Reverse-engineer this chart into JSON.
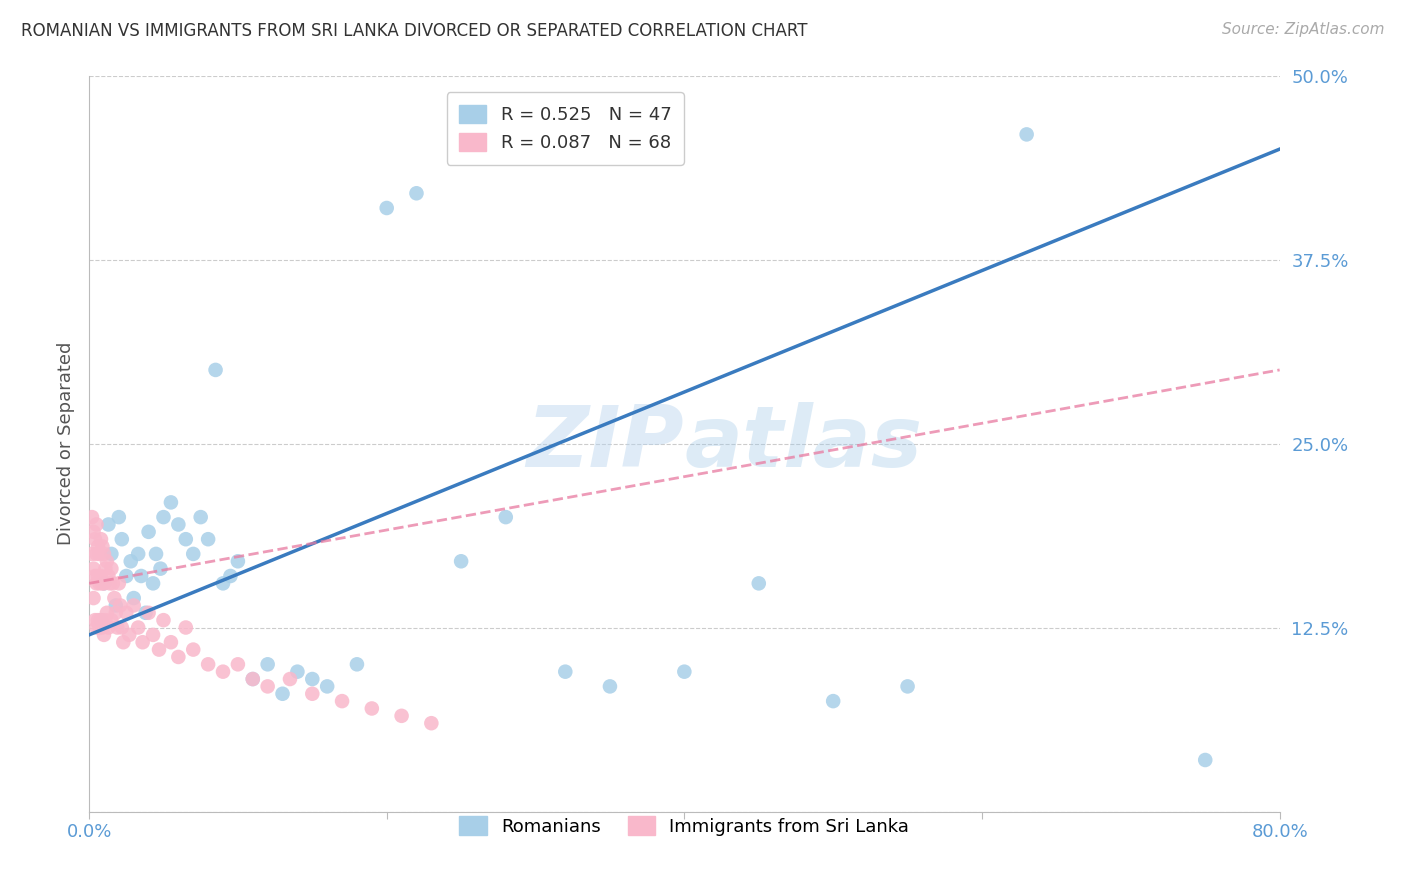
{
  "title": "ROMANIAN VS IMMIGRANTS FROM SRI LANKA DIVORCED OR SEPARATED CORRELATION CHART",
  "source_text": "Source: ZipAtlas.com",
  "ylabel": "Divorced or Separated",
  "xlim": [
    0.0,
    0.8
  ],
  "ylim": [
    0.0,
    0.5
  ],
  "legend_entries": [
    {
      "label": "Romanians",
      "color": "#a8cfe8",
      "R": "0.525",
      "N": "47"
    },
    {
      "label": "Immigrants from Sri Lanka",
      "color": "#f9b8cb",
      "R": "0.087",
      "N": "68"
    }
  ],
  "watermark": "ZIPatlas",
  "blue_scatter_color": "#a8cfe8",
  "pink_scatter_color": "#f9b8cb",
  "blue_line_color": "#3a7bbf",
  "pink_line_color": "#e87aa0",
  "grid_color": "#cccccc",
  "axis_tick_color": "#5b9bd5",
  "ylabel_color": "#555555",
  "title_color": "#333333",
  "source_color": "#aaaaaa",
  "romanians_x": [
    0.008,
    0.01,
    0.013,
    0.015,
    0.018,
    0.02,
    0.022,
    0.025,
    0.028,
    0.03,
    0.033,
    0.035,
    0.038,
    0.04,
    0.043,
    0.045,
    0.048,
    0.05,
    0.055,
    0.06,
    0.065,
    0.07,
    0.075,
    0.08,
    0.085,
    0.09,
    0.095,
    0.1,
    0.11,
    0.12,
    0.13,
    0.14,
    0.15,
    0.16,
    0.18,
    0.2,
    0.22,
    0.25,
    0.28,
    0.32,
    0.35,
    0.4,
    0.45,
    0.5,
    0.55,
    0.63,
    0.75
  ],
  "romanians_y": [
    0.13,
    0.155,
    0.195,
    0.175,
    0.14,
    0.2,
    0.185,
    0.16,
    0.17,
    0.145,
    0.175,
    0.16,
    0.135,
    0.19,
    0.155,
    0.175,
    0.165,
    0.2,
    0.21,
    0.195,
    0.185,
    0.175,
    0.2,
    0.185,
    0.3,
    0.155,
    0.16,
    0.17,
    0.09,
    0.1,
    0.08,
    0.095,
    0.09,
    0.085,
    0.1,
    0.41,
    0.42,
    0.17,
    0.2,
    0.095,
    0.085,
    0.095,
    0.155,
    0.075,
    0.085,
    0.46,
    0.035
  ],
  "srilanka_x": [
    0.002,
    0.002,
    0.003,
    0.003,
    0.003,
    0.004,
    0.004,
    0.004,
    0.005,
    0.005,
    0.005,
    0.005,
    0.006,
    0.006,
    0.006,
    0.007,
    0.007,
    0.007,
    0.008,
    0.008,
    0.008,
    0.009,
    0.009,
    0.009,
    0.01,
    0.01,
    0.01,
    0.011,
    0.011,
    0.012,
    0.012,
    0.013,
    0.013,
    0.014,
    0.015,
    0.015,
    0.016,
    0.017,
    0.018,
    0.019,
    0.02,
    0.021,
    0.022,
    0.023,
    0.025,
    0.027,
    0.03,
    0.033,
    0.036,
    0.04,
    0.043,
    0.047,
    0.05,
    0.055,
    0.06,
    0.065,
    0.07,
    0.08,
    0.09,
    0.1,
    0.11,
    0.12,
    0.135,
    0.15,
    0.17,
    0.19,
    0.21,
    0.23
  ],
  "srilanka_y": [
    0.2,
    0.175,
    0.19,
    0.165,
    0.145,
    0.185,
    0.16,
    0.13,
    0.195,
    0.175,
    0.155,
    0.125,
    0.18,
    0.16,
    0.13,
    0.175,
    0.155,
    0.125,
    0.185,
    0.16,
    0.13,
    0.18,
    0.155,
    0.125,
    0.175,
    0.155,
    0.12,
    0.165,
    0.13,
    0.17,
    0.135,
    0.16,
    0.125,
    0.155,
    0.165,
    0.13,
    0.155,
    0.145,
    0.135,
    0.125,
    0.155,
    0.14,
    0.125,
    0.115,
    0.135,
    0.12,
    0.14,
    0.125,
    0.115,
    0.135,
    0.12,
    0.11,
    0.13,
    0.115,
    0.105,
    0.125,
    0.11,
    0.1,
    0.095,
    0.1,
    0.09,
    0.085,
    0.09,
    0.08,
    0.075,
    0.07,
    0.065,
    0.06
  ]
}
